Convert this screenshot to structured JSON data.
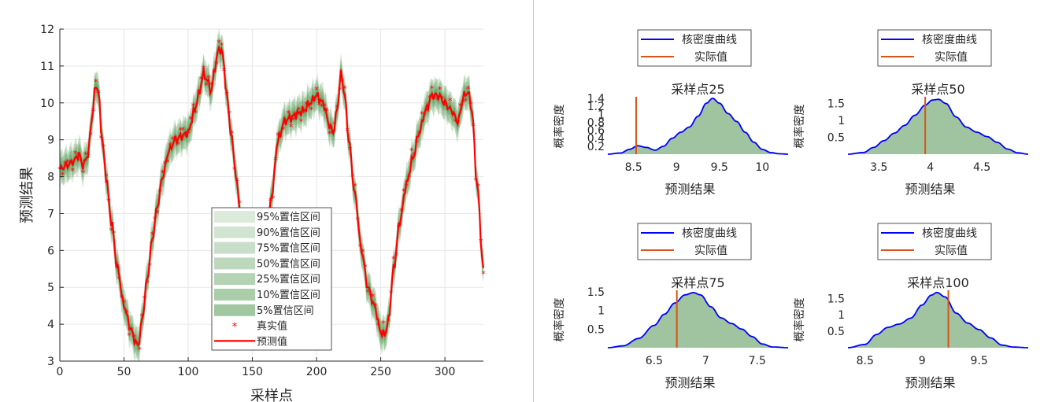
{
  "colors": {
    "band": "#3a8a3a",
    "actual_marker": "#ff0000",
    "prediction": "#ff0000",
    "kde_line": "#0000ff",
    "kde_fill": "#9fc49f",
    "actual_line": "#d95319",
    "axis": "#262626",
    "grid": "#e6e6e6"
  },
  "chart_data": [
    {
      "type": "area",
      "xlabel": "采样点",
      "ylabel": "预测结果",
      "xlim": [
        0,
        330
      ],
      "ylim": [
        3,
        12
      ],
      "x_ticks": [
        "0",
        "50",
        "100",
        "150",
        "200",
        "250",
        "300"
      ],
      "y_ticks": [
        "3",
        "4",
        "5",
        "6",
        "7",
        "8",
        "9",
        "10",
        "11",
        "12"
      ],
      "grid": true,
      "legend_position": "bottom-center",
      "legend": [
        "95%置信区间",
        "90%置信区间",
        "75%置信区间",
        "50%置信区间",
        "25%置信区间",
        "10%置信区间",
        "5%置信区间",
        "真实值",
        "预测值"
      ],
      "band_half_widths": [
        0.45,
        0.38,
        0.3,
        0.22,
        0.15,
        0.1,
        0.06
      ],
      "prediction_keypoints": {
        "x": [
          0,
          5,
          10,
          15,
          18,
          22,
          25,
          28,
          30,
          33,
          36,
          40,
          45,
          50,
          55,
          58,
          61,
          64,
          68,
          72,
          76,
          80,
          85,
          90,
          95,
          100,
          105,
          108,
          112,
          115,
          118,
          121,
          124,
          127,
          130,
          134,
          138,
          142,
          146,
          150,
          155,
          160,
          165,
          170,
          175,
          180,
          185,
          190,
          195,
          200,
          205,
          210,
          213,
          216,
          219,
          222,
          225,
          230,
          235,
          240,
          245,
          250,
          253,
          256,
          260,
          265,
          270,
          275,
          280,
          285,
          290,
          295,
          300,
          305,
          310,
          315,
          318,
          321,
          325,
          330
        ],
        "y": [
          8.2,
          8.3,
          8.4,
          8.6,
          8.3,
          8.6,
          9.6,
          10.5,
          10.3,
          9.0,
          8.0,
          6.8,
          5.5,
          4.5,
          3.9,
          3.6,
          3.4,
          4.1,
          5.2,
          6.3,
          7.2,
          8.0,
          8.7,
          9.0,
          9.1,
          9.2,
          9.8,
          10.2,
          10.8,
          10.6,
          10.3,
          11.0,
          11.5,
          11.3,
          10.2,
          9.0,
          7.8,
          6.5,
          5.0,
          3.9,
          3.8,
          5.5,
          7.5,
          9.0,
          9.5,
          9.6,
          9.7,
          9.8,
          10.0,
          10.2,
          10.0,
          9.4,
          9.2,
          9.8,
          10.8,
          10.2,
          9.0,
          7.5,
          6.0,
          5.0,
          4.5,
          3.8,
          3.7,
          4.1,
          5.5,
          6.8,
          7.8,
          8.5,
          9.2,
          9.8,
          10.2,
          10.2,
          10.0,
          9.8,
          9.5,
          10.2,
          10.3,
          9.8,
          7.8,
          5.5
        ]
      },
      "actual_noise": 0.12,
      "sample_count": 330
    },
    {
      "type": "area",
      "title": "采样点25",
      "xlabel": "预测结果",
      "ylabel": "概率密度",
      "xlim": [
        8.2,
        10.3
      ],
      "ylim": [
        0,
        1.4
      ],
      "x_ticks": [
        8.5,
        9,
        9.5,
        10
      ],
      "y_ticks": [
        0.2,
        0.4,
        0.6,
        0.8,
        1,
        1.2,
        1.4
      ],
      "legend": [
        "核密度曲线",
        "实际值"
      ],
      "actual_value": 8.53,
      "kde": {
        "x": [
          8.2,
          8.35,
          8.45,
          8.55,
          8.65,
          8.75,
          8.85,
          8.95,
          9.05,
          9.15,
          9.25,
          9.35,
          9.42,
          9.5,
          9.6,
          9.7,
          9.8,
          9.9,
          10.0,
          10.1,
          10.2,
          10.3
        ],
        "y": [
          0.0,
          0.03,
          0.12,
          0.21,
          0.17,
          0.1,
          0.2,
          0.4,
          0.55,
          0.68,
          0.95,
          1.28,
          1.4,
          1.28,
          1.02,
          0.82,
          0.55,
          0.3,
          0.12,
          0.04,
          0.01,
          0.0
        ]
      }
    },
    {
      "type": "area",
      "title": "采样点50",
      "xlabel": "预测结果",
      "ylabel": "概率密度",
      "xlim": [
        3.2,
        4.95
      ],
      "ylim": [
        0,
        1.65
      ],
      "x_ticks": [
        3.5,
        4,
        4.5
      ],
      "y_ticks": [
        0.5,
        1,
        1.5
      ],
      "legend": [
        "核密度曲线",
        "实际值"
      ],
      "actual_value": 3.95,
      "kde": {
        "x": [
          3.2,
          3.35,
          3.45,
          3.55,
          3.65,
          3.75,
          3.85,
          3.95,
          4.02,
          4.08,
          4.15,
          4.25,
          4.35,
          4.45,
          4.55,
          4.65,
          4.75,
          4.85,
          4.95
        ],
        "y": [
          0.0,
          0.05,
          0.2,
          0.4,
          0.62,
          0.85,
          1.15,
          1.45,
          1.6,
          1.62,
          1.5,
          1.1,
          0.8,
          0.65,
          0.52,
          0.35,
          0.15,
          0.04,
          0.0
        ]
      }
    },
    {
      "type": "area",
      "title": "采样点75",
      "xlabel": "预测结果",
      "ylabel": "概率密度",
      "xlim": [
        6.05,
        7.8
      ],
      "ylim": [
        0,
        1.5
      ],
      "x_ticks": [
        6.5,
        7,
        7.5
      ],
      "y_ticks": [
        0.5,
        1,
        1.5
      ],
      "legend": [
        "核密度曲线",
        "实际值"
      ],
      "actual_value": 6.72,
      "kde": {
        "x": [
          6.05,
          6.2,
          6.35,
          6.5,
          6.6,
          6.7,
          6.8,
          6.88,
          6.95,
          7.05,
          7.15,
          7.25,
          7.35,
          7.45,
          7.55,
          7.65,
          7.8
        ],
        "y": [
          0.0,
          0.05,
          0.25,
          0.6,
          0.9,
          1.2,
          1.42,
          1.48,
          1.42,
          1.1,
          0.8,
          0.65,
          0.5,
          0.3,
          0.1,
          0.02,
          0.0
        ]
      }
    },
    {
      "type": "area",
      "title": "采样点100",
      "xlabel": "预测结果",
      "ylabel": "概率密度",
      "xlim": [
        8.35,
        9.93
      ],
      "ylim": [
        0,
        1.7
      ],
      "x_ticks": [
        8.5,
        9,
        9.5
      ],
      "y_ticks": [
        0.5,
        1,
        1.5
      ],
      "legend": [
        "核密度曲线",
        "实际值"
      ],
      "actual_value": 9.23,
      "kde": {
        "x": [
          8.35,
          8.5,
          8.6,
          8.7,
          8.8,
          8.9,
          9.0,
          9.08,
          9.13,
          9.2,
          9.3,
          9.4,
          9.5,
          9.6,
          9.7,
          9.8,
          9.93
        ],
        "y": [
          0.0,
          0.1,
          0.4,
          0.62,
          0.72,
          0.9,
          1.3,
          1.6,
          1.68,
          1.55,
          1.05,
          0.75,
          0.55,
          0.3,
          0.08,
          0.02,
          0.0
        ]
      }
    }
  ]
}
